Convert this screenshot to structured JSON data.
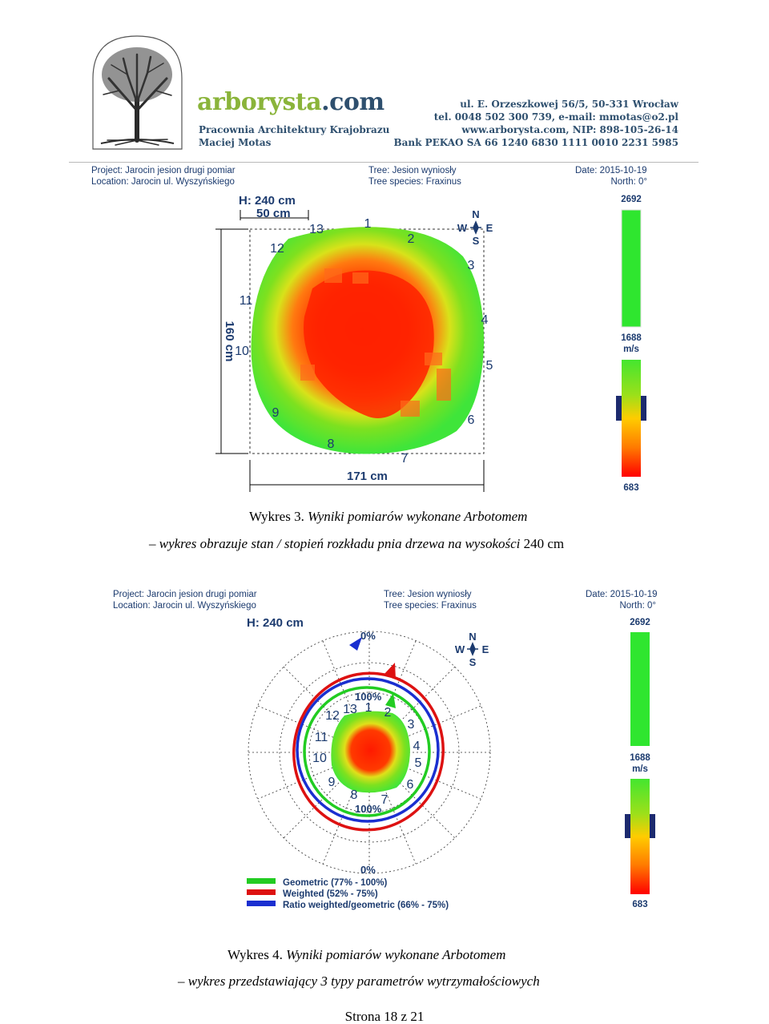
{
  "header": {
    "brand": "arborysta.com",
    "subtitle_1": "Pracownia Architektury Krajobrazu",
    "subtitle_2": "Maciej Motas",
    "address": "ul. E. Orzeszkowej 56/5, 50-331 Wrocław",
    "contact": "tel. 0048 502 300 739, e-mail: mmotas@o2.pl",
    "web": "www.arborysta.com, NIP: 898-105-26-14",
    "bank": "Bank PEKAO SA 66 1240 6830 1111 0010 2231 5985"
  },
  "figure1": {
    "project": "Project: Jarocin jesion drugi pomiar",
    "location": "Location: Jarocin ul. Wyszyńskiego",
    "tree": "Tree: Jesion wyniosły",
    "species": "Tree species: Fraxinus",
    "date": "Date: 2015-10-19",
    "north": "North: 0°",
    "height": "H: 240 cm",
    "scale": "50 cm",
    "dim_vertical": "160 cm",
    "dim_horizontal": "171 cm",
    "compass": {
      "n": "N",
      "w": "W",
      "e": "E",
      "s": "S"
    },
    "sensors": [
      "1",
      "2",
      "3",
      "4",
      "5",
      "6",
      "7",
      "8",
      "9",
      "10",
      "11",
      "12",
      "13"
    ],
    "colorbar": {
      "max": "2692",
      "mid": "1688",
      "unit": "m/s",
      "min": "683",
      "colors": [
        "#ff0000",
        "#ffcc00",
        "#7ee11f",
        "#2fe62f"
      ]
    },
    "caption_lead": "Wykres 3.",
    "caption_italic": "Wyniki pomiarów wykonane Arbotomem",
    "caption2_dash": "–",
    "caption2_italic": "wykres obrazuje stan / stopień rozkładu pnia drzewa na wysokości",
    "caption2_tail": "240 cm"
  },
  "figure2": {
    "project": "Project: Jarocin jesion drugi pomiar",
    "location": "Location: Jarocin ul. Wyszyńskiego",
    "tree": "Tree: Jesion wyniosły",
    "species": "Tree species: Fraxinus",
    "date": "Date: 2015-10-19",
    "north": "North: 0°",
    "height": "H: 240 cm",
    "compass": {
      "n": "N",
      "w": "W",
      "e": "E",
      "s": "S"
    },
    "pct_top": "0%",
    "pct_bottom": "0%",
    "pct_100_top": "100%",
    "pct_100_bottom": "100%",
    "sensors": [
      "1",
      "2",
      "3",
      "4",
      "5",
      "6",
      "7",
      "8",
      "9",
      "10",
      "11",
      "12",
      "13"
    ],
    "legend": [
      {
        "label": "Geometric (77% - 100%)",
        "color": "#22cc22"
      },
      {
        "label": "Weighted (52% - 75%)",
        "color": "#dd1111"
      },
      {
        "label": "Ratio weighted/geometric (66% - 75%)",
        "color": "#1a2fd0"
      }
    ],
    "colorbar": {
      "max": "2692",
      "mid": "1688",
      "unit": "m/s",
      "min": "683"
    },
    "caption_lead": "Wykres 4.",
    "caption_italic": "Wyniki pomiarów wykonane Arbotomem",
    "caption2_dash": "–",
    "caption2_italic": "wykres przedstawiający 3 typy parametrów wytrzymałościowych"
  },
  "footer": {
    "page": "Strona 18 z 21"
  }
}
